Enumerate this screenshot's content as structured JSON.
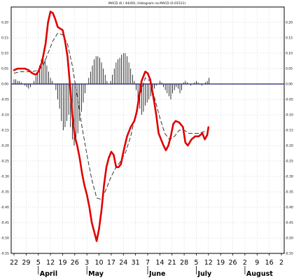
{
  "chart_data": {
    "type": "line",
    "title": "MACD (6 / 44/40), Histogram na MACD (0.01511)",
    "ylim": [
      -0.55,
      0.25
    ],
    "y_ticks": [
      0.2,
      0.15,
      0.1,
      0.05,
      0.0,
      -0.05,
      -0.1,
      -0.15,
      -0.2,
      -0.25,
      -0.3,
      -0.35,
      -0.4,
      -0.45,
      -0.5,
      -0.55
    ],
    "y_tick_labels": [
      "0.20",
      "0.15",
      "0.10",
      "0.05",
      "0.00",
      "-0.05",
      "-0.10",
      "-0.15",
      "-0.20",
      "-0.25",
      "-0.30",
      "-0.35",
      "-0.40",
      "-0.45",
      "-0.50",
      "-0.55"
    ],
    "x_day_labels": [
      "22",
      "29",
      "5",
      "12",
      "19",
      "26",
      "3",
      "10",
      "17",
      "24",
      "31",
      "7",
      "14",
      "21",
      "28",
      "5",
      "12",
      "19",
      "26",
      "2",
      "9",
      "16",
      "2"
    ],
    "x_month_labels": [
      {
        "label": "April",
        "at_day": 2
      },
      {
        "label": "May",
        "at_day": 6
      },
      {
        "label": "June",
        "at_day": 11
      },
      {
        "label": "July",
        "at_day": 15
      },
      {
        "label": "August",
        "at_day": 19
      }
    ],
    "grid": true,
    "zero_line": 0.0,
    "series": [
      {
        "kind": "macd",
        "color": "#e00000",
        "points": [
          [
            0,
            0.045
          ],
          [
            0.3,
            0.05
          ],
          [
            0.6,
            0.05
          ],
          [
            0.9,
            0.05
          ],
          [
            1.2,
            0.045
          ],
          [
            1.5,
            0.035
          ],
          [
            1.8,
            0.03
          ],
          [
            2.0,
            0.04
          ],
          [
            2.3,
            0.07
          ],
          [
            2.6,
            0.13
          ],
          [
            2.8,
            0.2
          ],
          [
            3.0,
            0.235
          ],
          [
            3.2,
            0.23
          ],
          [
            3.4,
            0.21
          ],
          [
            3.6,
            0.185
          ],
          [
            3.8,
            0.18
          ],
          [
            4.0,
            0.175
          ],
          [
            4.2,
            0.14
          ],
          [
            4.4,
            0.09
          ],
          [
            4.6,
            0.0
          ],
          [
            4.8,
            -0.1
          ],
          [
            5.0,
            -0.17
          ],
          [
            5.2,
            -0.2
          ],
          [
            5.4,
            -0.24
          ],
          [
            5.6,
            -0.29
          ],
          [
            5.8,
            -0.33
          ],
          [
            6.0,
            -0.36
          ],
          [
            6.2,
            -0.4
          ],
          [
            6.4,
            -0.45
          ],
          [
            6.6,
            -0.48
          ],
          [
            6.8,
            -0.51
          ],
          [
            7.0,
            -0.47
          ],
          [
            7.2,
            -0.41
          ],
          [
            7.4,
            -0.33
          ],
          [
            7.6,
            -0.27
          ],
          [
            7.8,
            -0.24
          ],
          [
            8.0,
            -0.22
          ],
          [
            8.2,
            -0.23
          ],
          [
            8.4,
            -0.27
          ],
          [
            8.6,
            -0.27
          ],
          [
            8.8,
            -0.26
          ],
          [
            9.0,
            -0.22
          ],
          [
            9.3,
            -0.17
          ],
          [
            9.6,
            -0.14
          ],
          [
            9.9,
            -0.12
          ],
          [
            10.1,
            -0.09
          ],
          [
            10.3,
            -0.04
          ],
          [
            10.5,
            0.01
          ],
          [
            10.8,
            0.04
          ],
          [
            11.0,
            0.035
          ],
          [
            11.2,
            0.015
          ],
          [
            11.5,
            -0.05
          ],
          [
            11.7,
            -0.1
          ],
          [
            11.9,
            -0.16
          ],
          [
            12.1,
            -0.18
          ],
          [
            12.3,
            -0.2
          ],
          [
            12.5,
            -0.215
          ],
          [
            12.7,
            -0.2
          ],
          [
            12.9,
            -0.17
          ],
          [
            13.1,
            -0.13
          ],
          [
            13.3,
            -0.12
          ],
          [
            13.6,
            -0.125
          ],
          [
            13.9,
            -0.14
          ],
          [
            14.1,
            -0.19
          ],
          [
            14.3,
            -0.2
          ],
          [
            14.6,
            -0.18
          ],
          [
            14.9,
            -0.17
          ],
          [
            15.2,
            -0.17
          ],
          [
            15.5,
            -0.16
          ],
          [
            15.7,
            -0.18
          ],
          [
            15.9,
            -0.165
          ],
          [
            16.0,
            -0.14
          ]
        ]
      },
      {
        "kind": "signal",
        "color": "#222222",
        "points": [
          [
            0,
            0.035
          ],
          [
            0.5,
            0.04
          ],
          [
            1.0,
            0.04
          ],
          [
            1.5,
            0.04
          ],
          [
            2.0,
            0.045
          ],
          [
            2.4,
            0.06
          ],
          [
            2.8,
            0.1
          ],
          [
            3.2,
            0.14
          ],
          [
            3.6,
            0.165
          ],
          [
            4.0,
            0.16
          ],
          [
            4.4,
            0.13
          ],
          [
            4.8,
            0.06
          ],
          [
            5.2,
            -0.04
          ],
          [
            5.6,
            -0.14
          ],
          [
            6.0,
            -0.23
          ],
          [
            6.4,
            -0.31
          ],
          [
            6.8,
            -0.37
          ],
          [
            7.2,
            -0.375
          ],
          [
            7.6,
            -0.34
          ],
          [
            8.0,
            -0.3
          ],
          [
            8.4,
            -0.27
          ],
          [
            8.8,
            -0.25
          ],
          [
            9.2,
            -0.22
          ],
          [
            9.6,
            -0.17
          ],
          [
            10.0,
            -0.1
          ],
          [
            10.4,
            -0.03
          ],
          [
            10.8,
            0.02
          ],
          [
            11.2,
            0.01
          ],
          [
            11.6,
            -0.05
          ],
          [
            12.0,
            -0.11
          ],
          [
            12.4,
            -0.16
          ],
          [
            12.8,
            -0.18
          ],
          [
            13.2,
            -0.17
          ],
          [
            13.6,
            -0.15
          ],
          [
            14.0,
            -0.15
          ],
          [
            14.4,
            -0.16
          ],
          [
            14.8,
            -0.16
          ],
          [
            15.2,
            -0.16
          ],
          [
            15.6,
            -0.155
          ],
          [
            16.0,
            -0.155
          ]
        ]
      },
      {
        "kind": "histogram",
        "color": "#000000",
        "bars": [
          [
            0.0,
            0.015
          ],
          [
            0.15,
            0.015
          ],
          [
            0.3,
            0.01
          ],
          [
            0.45,
            0.01
          ],
          [
            0.6,
            0.005
          ],
          [
            0.75,
            0.0
          ],
          [
            0.9,
            -0.005
          ],
          [
            1.05,
            -0.01
          ],
          [
            1.2,
            -0.015
          ],
          [
            1.35,
            -0.01
          ],
          [
            1.5,
            0.0
          ],
          [
            1.65,
            0.01
          ],
          [
            1.8,
            0.025
          ],
          [
            1.95,
            0.04
          ],
          [
            2.1,
            0.06
          ],
          [
            2.25,
            0.08
          ],
          [
            2.4,
            0.1
          ],
          [
            2.55,
            0.08
          ],
          [
            2.7,
            0.06
          ],
          [
            2.85,
            0.04
          ],
          [
            3.0,
            0.02
          ],
          [
            3.15,
            0.01
          ],
          [
            3.3,
            0.0
          ],
          [
            3.45,
            -0.02
          ],
          [
            3.6,
            -0.05
          ],
          [
            3.75,
            -0.08
          ],
          [
            3.9,
            -0.12
          ],
          [
            4.05,
            -0.15
          ],
          [
            4.2,
            -0.14
          ],
          [
            4.35,
            -0.12
          ],
          [
            4.5,
            -0.1
          ],
          [
            4.65,
            -0.14
          ],
          [
            4.8,
            -0.18
          ],
          [
            4.95,
            -0.2
          ],
          [
            5.1,
            -0.18
          ],
          [
            5.25,
            -0.16
          ],
          [
            5.4,
            -0.12
          ],
          [
            5.55,
            -0.09
          ],
          [
            5.7,
            -0.06
          ],
          [
            5.85,
            -0.03
          ],
          [
            6.0,
            0.0
          ],
          [
            6.15,
            0.02
          ],
          [
            6.3,
            0.04
          ],
          [
            6.45,
            0.06
          ],
          [
            6.6,
            0.08
          ],
          [
            6.75,
            0.09
          ],
          [
            6.9,
            0.09
          ],
          [
            7.05,
            0.085
          ],
          [
            7.2,
            0.07
          ],
          [
            7.35,
            0.05
          ],
          [
            7.5,
            0.03
          ],
          [
            7.65,
            0.01
          ],
          [
            7.8,
            0.0
          ],
          [
            7.95,
            0.01
          ],
          [
            8.1,
            0.03
          ],
          [
            8.25,
            0.05
          ],
          [
            8.4,
            0.07
          ],
          [
            8.55,
            0.08
          ],
          [
            8.7,
            0.085
          ],
          [
            8.85,
            0.095
          ],
          [
            9.0,
            0.1
          ],
          [
            9.15,
            0.1
          ],
          [
            9.3,
            0.09
          ],
          [
            9.45,
            0.07
          ],
          [
            9.6,
            0.05
          ],
          [
            9.75,
            0.03
          ],
          [
            9.9,
            0.01
          ],
          [
            10.05,
            -0.02
          ],
          [
            10.2,
            -0.05
          ],
          [
            10.35,
            -0.08
          ],
          [
            10.5,
            -0.1
          ],
          [
            10.65,
            -0.09
          ],
          [
            10.8,
            -0.07
          ],
          [
            10.95,
            -0.06
          ],
          [
            11.1,
            -0.05
          ],
          [
            11.25,
            -0.04
          ],
          [
            11.4,
            -0.03
          ],
          [
            11.55,
            -0.015
          ],
          [
            11.7,
            -0.005
          ],
          [
            11.85,
            0.0
          ],
          [
            12.0,
            0.01
          ],
          [
            12.15,
            0.005
          ],
          [
            12.3,
            -0.01
          ],
          [
            12.45,
            -0.02
          ],
          [
            12.6,
            -0.03
          ],
          [
            12.75,
            -0.04
          ],
          [
            12.9,
            -0.05
          ],
          [
            13.05,
            -0.03
          ],
          [
            13.2,
            -0.02
          ],
          [
            13.35,
            -0.01
          ],
          [
            13.5,
            -0.015
          ],
          [
            13.65,
            -0.03
          ],
          [
            13.8,
            -0.02
          ],
          [
            13.95,
            0.005
          ],
          [
            14.1,
            0.01
          ],
          [
            14.25,
            0.005
          ],
          [
            14.4,
            0.0
          ],
          [
            14.55,
            -0.005
          ],
          [
            14.7,
            0.0
          ],
          [
            14.85,
            0.005
          ],
          [
            15.0,
            0.01
          ],
          [
            15.15,
            0.005
          ],
          [
            15.3,
            0.0
          ],
          [
            15.45,
            -0.005
          ],
          [
            15.6,
            0.0
          ],
          [
            15.75,
            0.005
          ],
          [
            15.9,
            0.01
          ],
          [
            16.05,
            0.02
          ]
        ]
      }
    ]
  }
}
